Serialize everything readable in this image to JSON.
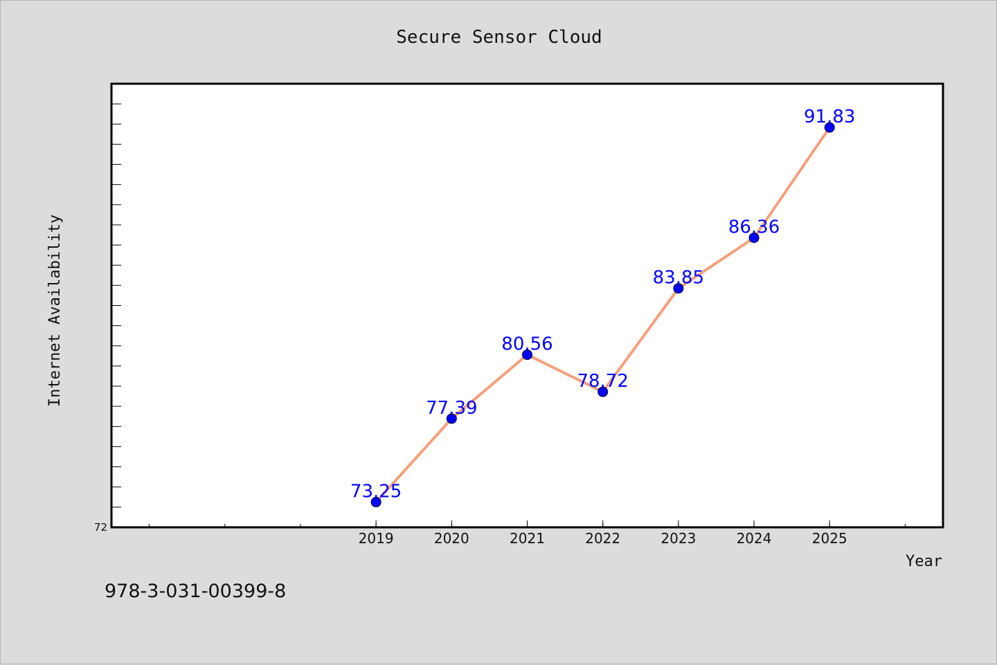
{
  "chart_data": {
    "type": "line",
    "title": "Secure Sensor Cloud",
    "xlabel": "Year",
    "ylabel": "Internet Availability",
    "categories": [
      "2019",
      "2020",
      "2021",
      "2022",
      "2023",
      "2024",
      "2025"
    ],
    "values": [
      73.25,
      77.39,
      80.56,
      78.72,
      83.85,
      86.36,
      91.83
    ],
    "data_labels": [
      "73.25",
      "77.39",
      "80.56",
      "78.72",
      "83.85",
      "86.36",
      "91.83"
    ],
    "x_range": [
      2015.5,
      2026.5
    ],
    "ylim": [
      72,
      94
    ],
    "ytick_labels": [
      "72"
    ],
    "grid": false,
    "line_color": "#f4a07c",
    "marker_color": "#0000ff",
    "label_color": "#0000ff"
  },
  "footer": {
    "text": "978-3-031-00399-8"
  }
}
